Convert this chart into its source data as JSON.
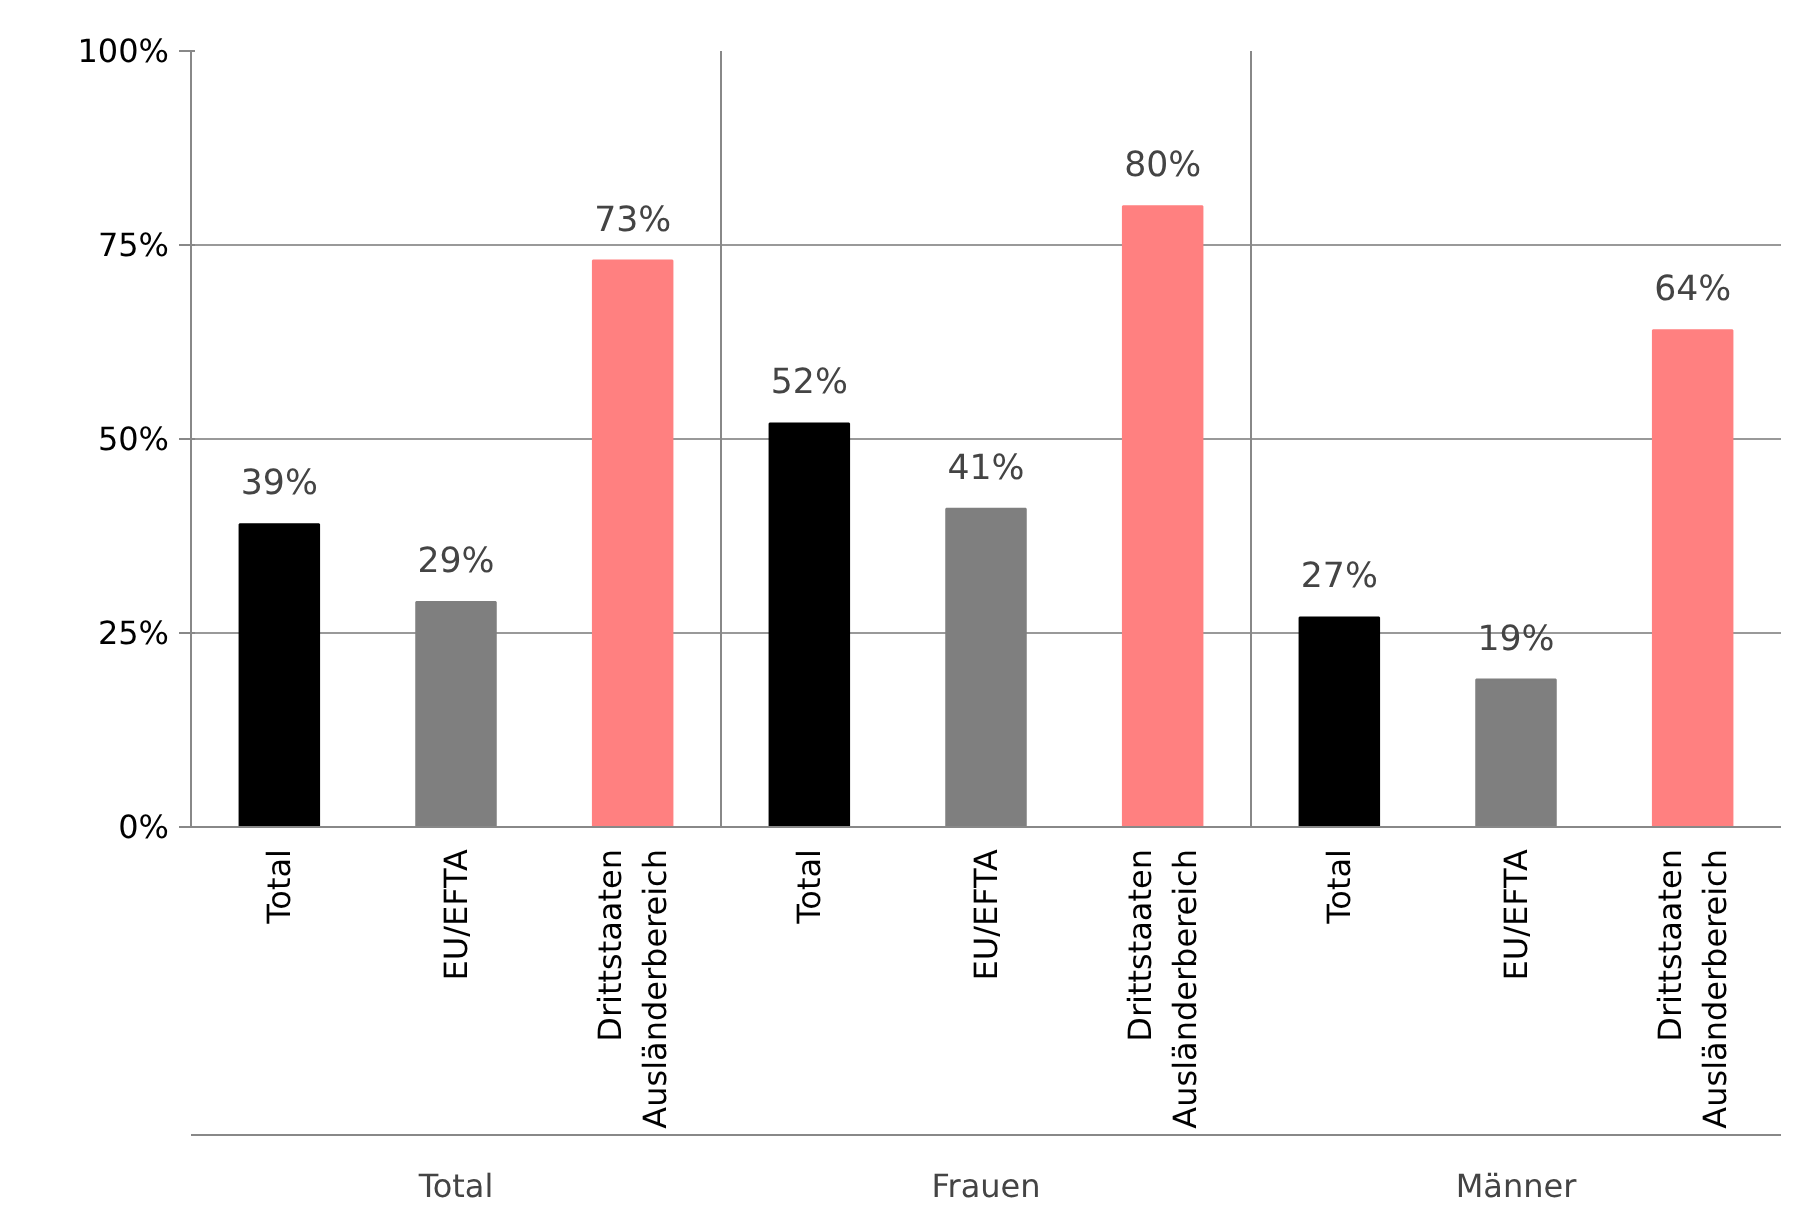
{
  "chart_data": {
    "type": "bar",
    "categories": [
      "Total",
      "EU/EFTA",
      "Drittstaaten\nAusländerbereich",
      "Total",
      "EU/EFTA",
      "Drittstaaten\nAusländerbereich",
      "Total",
      "EU/EFTA",
      "Drittstaaten\nAusländerbereich"
    ],
    "values": [
      39,
      29,
      73,
      52,
      41,
      80,
      27,
      19,
      64
    ],
    "colors": [
      "#000000",
      "#7f7f7f",
      "#ff8080",
      "#000000",
      "#7f7f7f",
      "#ff8080",
      "#000000",
      "#7f7f7f",
      "#ff8080"
    ],
    "value_labels": [
      "39%",
      "29%",
      "73%",
      "52%",
      "41%",
      "80%",
      "27%",
      "19%",
      "64%"
    ],
    "ylim": [
      0,
      100
    ],
    "yticks": [
      {
        "value": 0,
        "label": "0%"
      },
      {
        "value": 25,
        "label": "25%"
      },
      {
        "value": 50,
        "label": "50%"
      },
      {
        "value": 75,
        "label": "75%"
      },
      {
        "value": 100,
        "label": "100%"
      }
    ],
    "grid": "y",
    "annotations": [
      "Total",
      "Frauen",
      "Männer"
    ]
  }
}
